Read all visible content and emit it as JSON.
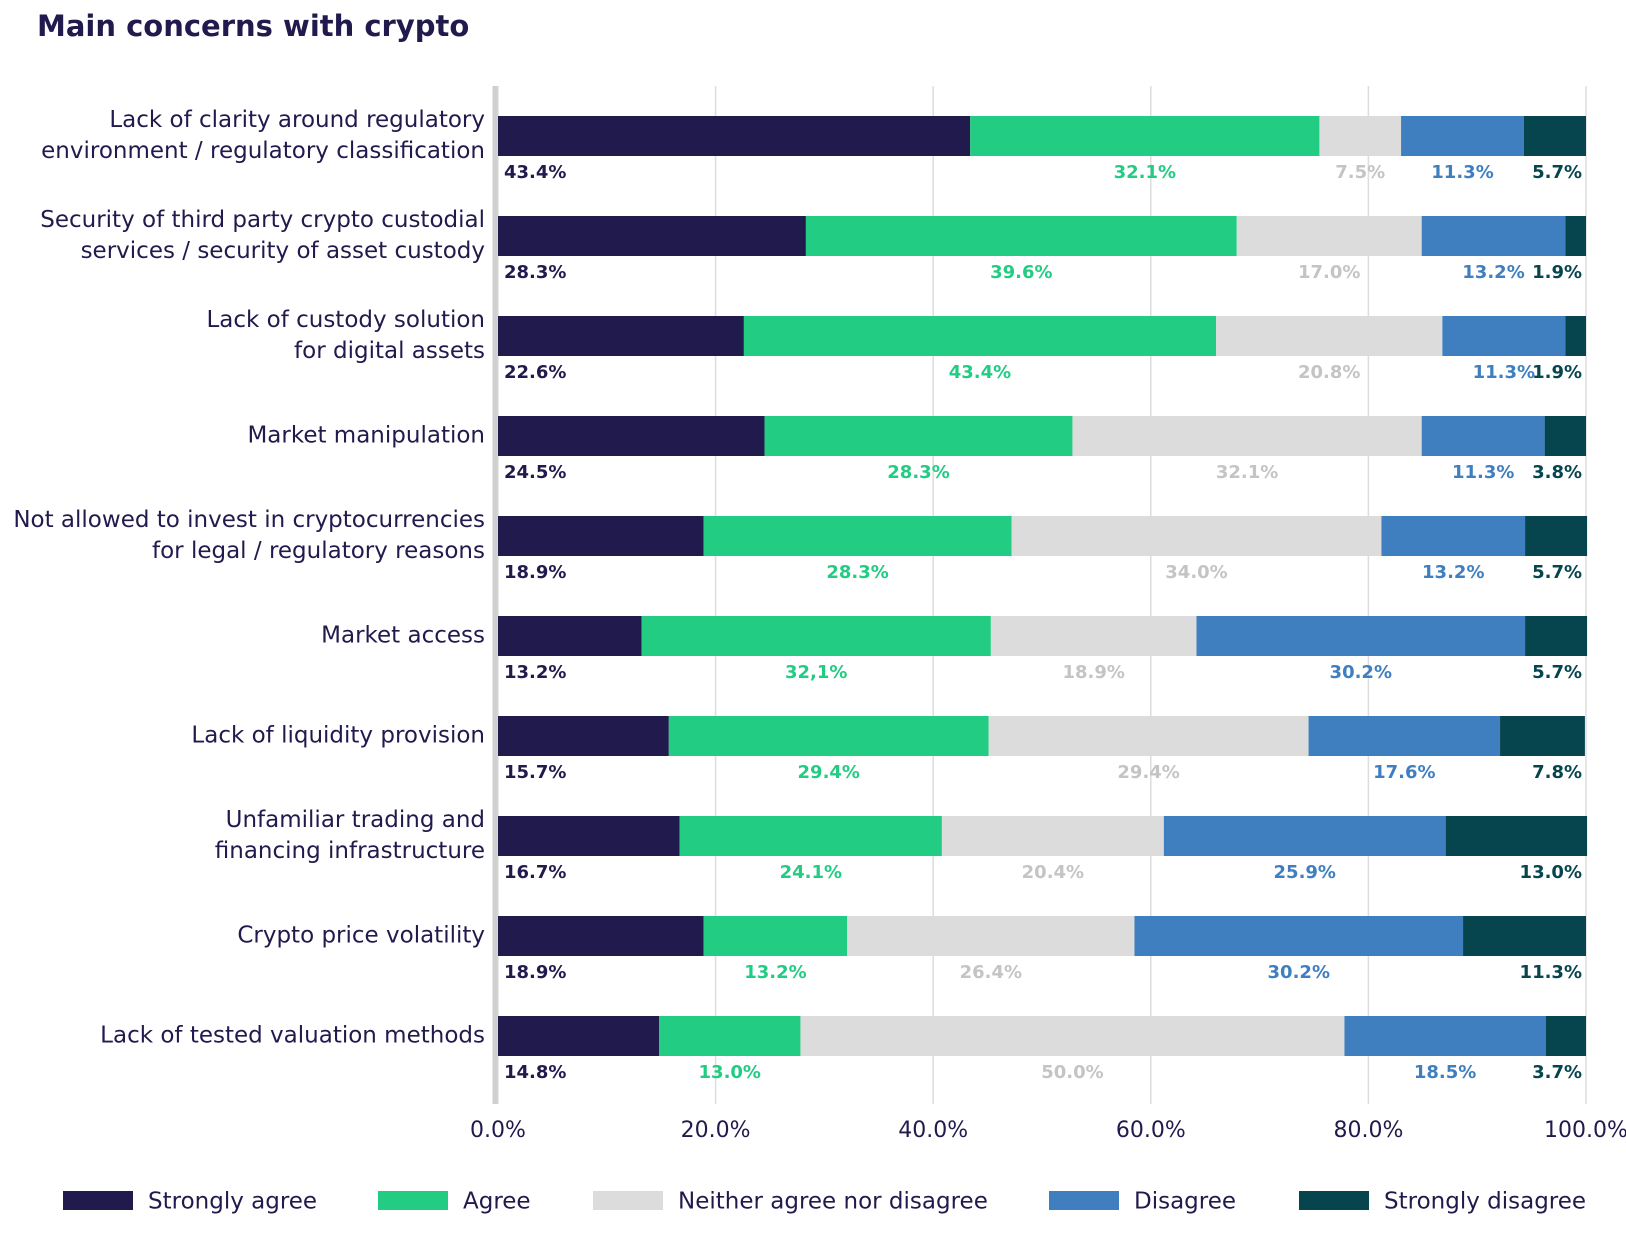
{
  "chart_data": {
    "type": "stacked-bar-horizontal",
    "title": "Main concerns with crypto",
    "categories": [
      "Lack of clarity around regulatory\nenvironment / regulatory classification",
      "Security of third party crypto custodial\nservices / security of asset custody",
      "Lack of custody solution\nfor digital assets",
      "Market manipulation",
      "Not allowed to invest in cryptocurrencies\nfor legal / regulatory reasons",
      "Market access",
      "Lack of liquidity provision",
      "Unfamiliar trading and\nfinancing infrastructure",
      "Crypto price volatility",
      "Lack of tested valuation methods"
    ],
    "series": [
      {
        "name": "Strongly agree",
        "color": "#211a4d",
        "values": [
          43.4,
          28.3,
          22.6,
          24.5,
          18.9,
          13.2,
          15.7,
          16.7,
          18.9,
          14.8
        ],
        "value_labels": [
          "43.4%",
          "28.3%",
          "22.6%",
          "24.5%",
          "18.9%",
          "13.2%",
          "15.7%",
          "16.7%",
          "18.9%",
          "14.8%"
        ]
      },
      {
        "name": "Agree",
        "color": "#22cc82",
        "values": [
          32.1,
          39.6,
          43.4,
          28.3,
          28.3,
          32.1,
          29.4,
          24.1,
          13.2,
          13.0
        ],
        "value_labels": [
          "32.1%",
          "39.6%",
          "43.4%",
          "28.3%",
          "28.3%",
          "32,1%",
          "29.4%",
          "24.1%",
          "13.2%",
          "13.0%"
        ]
      },
      {
        "name": "Neither agree nor disagree",
        "color": "#dcdcdc",
        "values": [
          7.5,
          17.0,
          20.8,
          32.1,
          34.0,
          18.9,
          29.4,
          20.4,
          26.4,
          50.0
        ],
        "value_labels": [
          "7.5%",
          "17.0%",
          "20.8%",
          "32.1%",
          "34.0%",
          "18.9%",
          "29.4%",
          "20.4%",
          "26.4%",
          "50.0%"
        ]
      },
      {
        "name": "Disagree",
        "color": "#3f7fc0",
        "values": [
          11.3,
          13.2,
          11.3,
          11.3,
          13.2,
          30.2,
          17.6,
          25.9,
          30.2,
          18.5
        ],
        "value_labels": [
          "11.3%",
          "13.2%",
          "11.3%",
          "11.3%",
          "13.2%",
          "30.2%",
          "17.6%",
          "25.9%",
          "30.2%",
          "18.5%"
        ]
      },
      {
        "name": "Strongly disagree",
        "color": "#06454d",
        "values": [
          5.7,
          1.9,
          1.9,
          3.8,
          5.7,
          5.7,
          7.8,
          13.0,
          11.3,
          3.7
        ],
        "value_labels": [
          "5.7%",
          "1.9%",
          "1.9%",
          "3.8%",
          "5.7%",
          "5.7%",
          "7.8%",
          "13.0%",
          "11.3%",
          "3.7%"
        ]
      }
    ],
    "xlim": [
      0,
      100
    ],
    "xticks": [
      {
        "value": 0,
        "label": "0.0%"
      },
      {
        "value": 20,
        "label": "20.0%"
      },
      {
        "value": 40,
        "label": "40.0%"
      },
      {
        "value": 60,
        "label": "60.0%"
      },
      {
        "value": 80,
        "label": "80.0%"
      },
      {
        "value": 100,
        "label": "100.0%"
      }
    ],
    "grid": true,
    "legend": "bottom"
  }
}
